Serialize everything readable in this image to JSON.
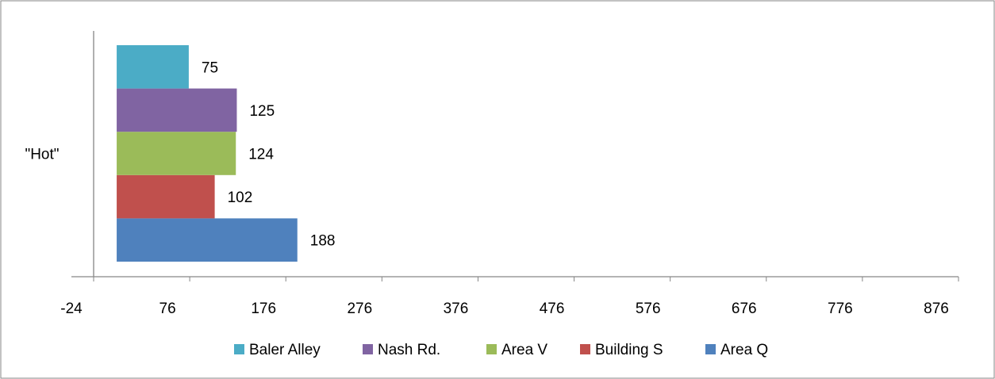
{
  "chart_data": {
    "type": "bar",
    "orientation": "horizontal",
    "categories": [
      "\"Hot\""
    ],
    "series": [
      {
        "name": "Area Q",
        "values": [
          188
        ],
        "color": "#4F81BD"
      },
      {
        "name": "Building S",
        "values": [
          102
        ],
        "color": "#C0504D"
      },
      {
        "name": "Area V",
        "values": [
          124
        ],
        "color": "#9BBB59"
      },
      {
        "name": "Nash Rd.",
        "values": [
          125
        ],
        "color": "#8064A2"
      },
      {
        "name": "Baler Alley",
        "values": [
          75
        ],
        "color": "#4BACC6"
      }
    ],
    "xlim": [
      -24,
      876
    ],
    "xticks": [
      -24,
      76,
      176,
      276,
      376,
      476,
      576,
      676,
      776,
      876
    ],
    "xtick_labels": [
      "-24",
      "76",
      "176",
      "276",
      "376",
      "476",
      "576",
      "676",
      "776",
      "876"
    ],
    "legend_order": [
      "Baler Alley",
      "Nash Rd.",
      "Area V",
      "Building S",
      "Area Q"
    ],
    "legend_position": "bottom",
    "grid": false,
    "data_labels": true,
    "axis_color": "#868686",
    "border_color": "#868686"
  }
}
